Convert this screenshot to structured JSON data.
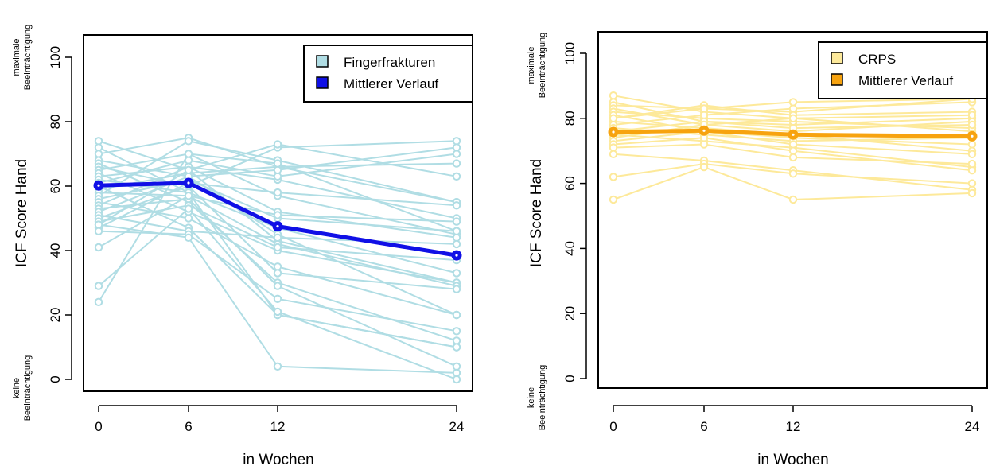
{
  "chart_data": [
    {
      "type": "line",
      "title": "",
      "xlabel": "in Wochen",
      "ylabel": "ICF Score Hand",
      "x": [
        0,
        6,
        12,
        24
      ],
      "xlim": [
        0,
        24
      ],
      "ylim": [
        0,
        100
      ],
      "yticks": [
        0,
        20,
        40,
        60,
        80,
        100
      ],
      "grid": false,
      "legend_position": "top-right",
      "y_top_note": [
        "maximale",
        "Beeinträchtigung"
      ],
      "y_bottom_note": [
        "keine",
        "Beeinträchtigung"
      ],
      "individual_color": "#b0dde4",
      "mean_color": "#1010e6",
      "series": [
        {
          "name": "Fingerfrakturen",
          "role": "individual",
          "profiles": [
            [
              74,
              65,
              43,
              30
            ],
            [
              72,
              58,
              20,
              10
            ],
            [
              70,
              75,
              66,
              55
            ],
            [
              68,
              63,
              45,
              20
            ],
            [
              67,
              55,
              30,
              12
            ],
            [
              66,
              60,
              72,
              74
            ],
            [
              65,
              70,
              57,
              45
            ],
            [
              64,
              52,
              40,
              30
            ],
            [
              63,
              66,
              62,
              50
            ],
            [
              62,
              58,
              47,
              33
            ],
            [
              61,
              68,
              63,
              70
            ],
            [
              60,
              47,
              20,
              10
            ],
            [
              59,
              64,
              66,
              67
            ],
            [
              58,
              57,
              42,
              29
            ],
            [
              57,
              74,
              68,
              55
            ],
            [
              56,
              62,
              50,
              46
            ],
            [
              55,
              50,
              35,
              20
            ],
            [
              54,
              66,
              52,
              44
            ],
            [
              53,
              56,
              29,
              4
            ],
            [
              52,
              63,
              65,
              72
            ],
            [
              51,
              46,
              44,
              42
            ],
            [
              50,
              60,
              33,
              28
            ],
            [
              49,
              54,
              41,
              37
            ],
            [
              48,
              65,
              73,
              63
            ],
            [
              47,
              61,
              58,
              54
            ],
            [
              46,
              45,
              25,
              15
            ],
            [
              41,
              57,
              51,
              49
            ],
            [
              29,
              53,
              21,
              0
            ],
            [
              24,
              70,
              67,
              46
            ],
            [
              48,
              44,
              4,
              2
            ]
          ]
        },
        {
          "name": "Mittlerer Verlauf",
          "role": "mean",
          "values": [
            60.2,
            61.0,
            47.5,
            38.5
          ]
        }
      ]
    },
    {
      "type": "line",
      "title": "",
      "xlabel": "in Wochen",
      "ylabel": "ICF Score Hand",
      "x": [
        0,
        6,
        12,
        24
      ],
      "xlim": [
        0,
        24
      ],
      "ylim": [
        0,
        100
      ],
      "yticks": [
        0,
        20,
        40,
        60,
        80,
        100
      ],
      "grid": false,
      "legend_position": "top-right",
      "y_top_note": [
        "maximale",
        "Beeinträchtigung"
      ],
      "y_bottom_note": [
        "keine",
        "Beeinträchtigung"
      ],
      "individual_color": "#fde99a",
      "mean_color": "#f7a30f",
      "series": [
        {
          "name": "CRPS",
          "role": "individual",
          "profiles": [
            [
              87,
              82,
              80,
              76
            ],
            [
              85,
              79,
              78,
              80
            ],
            [
              84,
              83,
              82,
              86
            ],
            [
              83,
              78,
              76,
              79
            ],
            [
              82,
              80,
              79,
              77
            ],
            [
              81,
              76,
              74,
              72
            ],
            [
              80,
              84,
              81,
              82
            ],
            [
              79,
              77,
              75,
              70
            ],
            [
              78,
              81,
              83,
              85
            ],
            [
              77,
              75,
              73,
              74
            ],
            [
              76,
              79,
              77,
              78
            ],
            [
              75,
              73,
              71,
              65
            ],
            [
              74,
              78,
              80,
              81
            ],
            [
              73,
              76,
              72,
              69
            ],
            [
              72,
              74,
              70,
              64
            ],
            [
              71,
              72,
              68,
              66
            ],
            [
              69,
              67,
              64,
              58
            ],
            [
              62,
              66,
              63,
              60
            ],
            [
              55,
              65,
              55,
              57
            ],
            [
              80,
              83,
              85,
              86
            ]
          ]
        },
        {
          "name": "Mittlerer Verlauf",
          "role": "mean",
          "values": [
            75.8,
            76.2,
            75.0,
            74.5
          ]
        }
      ]
    }
  ]
}
